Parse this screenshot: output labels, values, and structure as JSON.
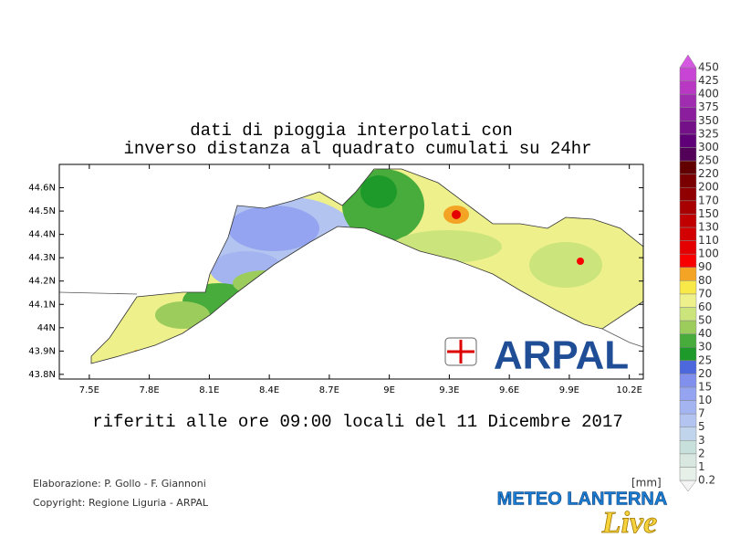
{
  "title_lines": [
    "dati di pioggia interpolati con",
    "inverso distanza al quadrato cumulati su 24hr"
  ],
  "subtitle": "riferiti alle ore 09:00 locali del 11 Dicembre 2017",
  "map": {
    "xlim": [
      7.35,
      10.27
    ],
    "ylim": [
      43.78,
      44.7
    ],
    "xticks": [
      {
        "value": 7.5,
        "label": "7.5E"
      },
      {
        "value": 7.8,
        "label": "7.8E"
      },
      {
        "value": 8.1,
        "label": "8.1E"
      },
      {
        "value": 8.4,
        "label": "8.4E"
      },
      {
        "value": 8.7,
        "label": "8.7E"
      },
      {
        "value": 9,
        "label": "9E"
      },
      {
        "value": 9.3,
        "label": "9.3E"
      },
      {
        "value": 9.6,
        "label": "9.6E"
      },
      {
        "value": 9.9,
        "label": "9.9E"
      },
      {
        "value": 10.2,
        "label": "10.2E"
      }
    ],
    "yticks": [
      {
        "value": 43.8,
        "label": "43.8N"
      },
      {
        "value": 43.9,
        "label": "43.9N"
      },
      {
        "value": 44,
        "label": "44N"
      },
      {
        "value": 44.1,
        "label": "44.1N"
      },
      {
        "value": 44.2,
        "label": "44.2N"
      },
      {
        "value": 44.3,
        "label": "44.3N"
      },
      {
        "value": 44.4,
        "label": "44.4N"
      },
      {
        "value": 44.5,
        "label": "44.5N"
      },
      {
        "value": 44.6,
        "label": "44.6N"
      }
    ]
  },
  "colorbar": {
    "unit": "[mm]",
    "levels": [
      0.2,
      1,
      2,
      3,
      5,
      7,
      10,
      15,
      20,
      25,
      30,
      40,
      50,
      60,
      70,
      80,
      90,
      100,
      110,
      130,
      150,
      170,
      200,
      220,
      250,
      300,
      325,
      350,
      375,
      400,
      425,
      450
    ],
    "colors": [
      "#f4f4f4",
      "#e6efe8",
      "#d8e8e0",
      "#c8e0dc",
      "#c0d4ec",
      "#b4c4f0",
      "#a4b4f0",
      "#94a4f0",
      "#8090ec",
      "#4c68dc",
      "#1e9a2a",
      "#48ac3c",
      "#9ccc5c",
      "#cce47c",
      "#eef08c",
      "#f8e848",
      "#f4a424",
      "#f80000",
      "#e40000",
      "#d20000",
      "#c00000",
      "#a80000",
      "#900000",
      "#7a0000",
      "#620000",
      "#520058",
      "#600078",
      "#741088",
      "#8a1e9c",
      "#a02cb0",
      "#b838c4",
      "#c844d4",
      "#d458e0"
    ]
  },
  "logo": "ARPAL",
  "footer": [
    "Elaborazione: P. Gollo - F. Giannoni",
    "Copyright: Regione Liguria - ARPAL"
  ],
  "watermark": {
    "main": "METEO LANTERNA",
    "script": "Live"
  }
}
